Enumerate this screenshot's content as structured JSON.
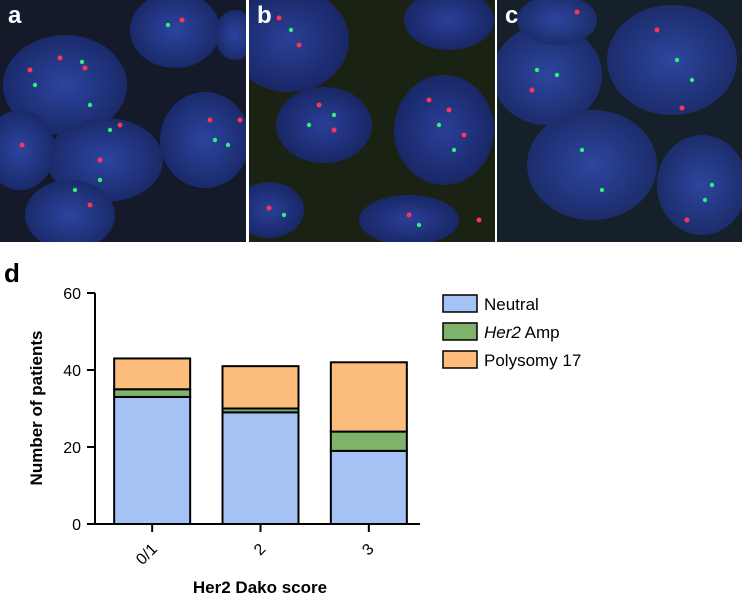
{
  "panels": [
    {
      "label": "a"
    },
    {
      "label": "b"
    },
    {
      "label": "c"
    }
  ],
  "colors": {
    "neutral": "#a4c2f4",
    "amp": "#7fb36b",
    "polysomy": "#fcbc7b",
    "nucleus": "#243a8c",
    "red_signal": "#ff3355",
    "green_signal": "#2ef07a"
  },
  "chart_data": {
    "panel_label": "d",
    "type": "bar",
    "stacked": true,
    "categories": [
      "0/1",
      "2",
      "3"
    ],
    "series": [
      {
        "name": "Neutral",
        "values": [
          33,
          29,
          19
        ],
        "color": "#a4c2f4"
      },
      {
        "name": "Her2 Amp",
        "name_italic": "Her2",
        "name_rest": " Amp",
        "values": [
          2,
          1,
          5
        ],
        "color": "#7fb36b"
      },
      {
        "name": "Polysomy 17",
        "values": [
          8,
          11,
          18
        ],
        "color": "#fcbc7b"
      }
    ],
    "xlabel": "Her2 Dako score",
    "ylabel": "Number of patients",
    "ylim": [
      0,
      60
    ],
    "yticks": [
      "0",
      "20",
      "40",
      "60"
    ],
    "legend_position": "top-right",
    "grid": false
  }
}
